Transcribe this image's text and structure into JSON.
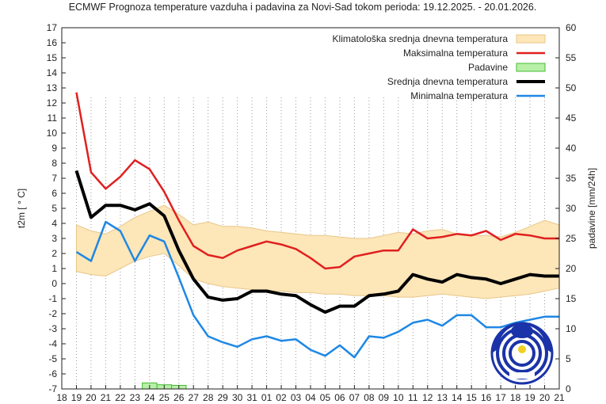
{
  "chart_data": {
    "type": "line",
    "title": "ECMWF Prognoza temperature vazduha i padavina za Novi-Sad tokom perioda: 19.12.2025. - 20.01.2026.",
    "ylabel": "t2m [ ° C]",
    "y2label": "padavine [mm/24h]",
    "ylim": [
      -7,
      17
    ],
    "y2lim": [
      0,
      60
    ],
    "yticks": [
      "17",
      "16",
      "15",
      "14",
      "13",
      "12",
      "11",
      "10",
      "9",
      "8",
      "7",
      "6",
      "5",
      "4",
      "3",
      "2",
      "1",
      "0",
      "-1",
      "-2",
      "-3",
      "-4",
      "-5",
      "-6",
      "-7"
    ],
    "y2ticks": [
      "60",
      "55",
      "50",
      "45",
      "40",
      "35",
      "30",
      "25",
      "20",
      "15",
      "10",
      "5",
      "0"
    ],
    "xticks": [
      "18",
      "19",
      "20",
      "21",
      "22",
      "23",
      "24",
      "25",
      "26",
      "27",
      "28",
      "29",
      "30",
      "31",
      "01",
      "02",
      "03",
      "04",
      "05",
      "06",
      "07",
      "08",
      "09",
      "10",
      "11",
      "12",
      "13",
      "14",
      "15",
      "16",
      "17",
      "18",
      "19",
      "20",
      "21"
    ],
    "grid": "vertical dotted",
    "legend_position": "top-right",
    "colors": {
      "climate_band": "#fde6b8",
      "climate_edge": "#e8c78a",
      "max": "#e02020",
      "precip": "#b8f0a8",
      "precip_edge": "#44bb33",
      "mean": "#000000",
      "min": "#1e88e5"
    },
    "series": [
      {
        "name": "Klimatološka srednja dnevna temperatura",
        "kind": "band",
        "x": [
          19,
          20,
          21,
          22,
          23,
          24,
          25,
          26,
          27,
          28,
          29,
          30,
          31,
          32,
          33,
          34,
          35,
          36,
          37,
          38,
          39,
          40,
          41,
          42,
          43,
          44,
          45,
          46,
          47,
          48,
          49,
          50,
          51,
          52
        ],
        "lower": [
          0.8,
          0.6,
          0.5,
          1.0,
          1.5,
          1.8,
          2.0,
          1.2,
          0.3,
          0.0,
          -0.2,
          -0.3,
          -0.4,
          -0.5,
          -0.5,
          -0.6,
          -0.6,
          -0.7,
          -0.7,
          -0.8,
          -0.8,
          -0.8,
          -0.9,
          -0.9,
          -0.8,
          -0.7,
          -0.8,
          -0.9,
          -1.0,
          -0.9,
          -0.8,
          -0.7,
          -0.5,
          -0.3
        ],
        "upper": [
          3.9,
          3.5,
          3.3,
          3.8,
          4.4,
          4.8,
          5.2,
          4.6,
          3.9,
          4.1,
          3.8,
          3.8,
          3.7,
          3.5,
          3.4,
          3.3,
          3.2,
          3.2,
          3.1,
          3.0,
          3.0,
          3.2,
          3.4,
          3.3,
          3.5,
          3.6,
          3.3,
          3.2,
          3.2,
          3.1,
          3.4,
          3.8,
          4.2,
          3.9
        ]
      },
      {
        "name": "Maksimalna temperatura",
        "kind": "line",
        "x": [
          19,
          20,
          21,
          22,
          23,
          24,
          25,
          26,
          27,
          28,
          29,
          30,
          31,
          32,
          33,
          34,
          35,
          36,
          37,
          38,
          39,
          40,
          41,
          42,
          43,
          44,
          45,
          46,
          47,
          48,
          49,
          50,
          51,
          52
        ],
        "values": [
          12.7,
          7.4,
          6.3,
          7.1,
          8.2,
          7.6,
          6.1,
          4.2,
          2.5,
          1.9,
          1.7,
          2.2,
          2.5,
          2.8,
          2.6,
          2.3,
          1.7,
          1.0,
          1.1,
          1.8,
          2.0,
          2.2,
          2.2,
          3.6,
          3.0,
          3.1,
          3.3,
          3.2,
          3.5,
          2.9,
          3.3,
          3.2,
          3.0,
          3.0
        ]
      },
      {
        "name": "Padavine",
        "kind": "bar",
        "axis": "y2",
        "x": [
          24,
          25,
          26
        ],
        "values": [
          1.0,
          0.7,
          0.6
        ]
      },
      {
        "name": "Srednja dnevna temperatura",
        "kind": "line",
        "x": [
          19,
          20,
          21,
          22,
          23,
          24,
          25,
          26,
          27,
          28,
          29,
          30,
          31,
          32,
          33,
          34,
          35,
          36,
          37,
          38,
          39,
          40,
          41,
          42,
          43,
          44,
          45,
          46,
          47,
          48,
          49,
          50,
          51,
          52
        ],
        "values": [
          7.5,
          4.4,
          5.2,
          5.2,
          4.9,
          5.3,
          4.5,
          2.2,
          0.3,
          -0.9,
          -1.1,
          -1.0,
          -0.5,
          -0.5,
          -0.7,
          -0.8,
          -1.4,
          -1.9,
          -1.5,
          -1.5,
          -0.8,
          -0.7,
          -0.5,
          0.6,
          0.3,
          0.1,
          0.6,
          0.4,
          0.3,
          0.0,
          0.3,
          0.6,
          0.5,
          0.5
        ]
      },
      {
        "name": "Minimalna temperatura",
        "kind": "line",
        "x": [
          19,
          20,
          21,
          22,
          23,
          24,
          25,
          26,
          27,
          28,
          29,
          30,
          31,
          32,
          33,
          34,
          35,
          36,
          37,
          38,
          39,
          40,
          41,
          42,
          43,
          44,
          45,
          46,
          47,
          48,
          49,
          50,
          51,
          52
        ],
        "values": [
          2.1,
          1.5,
          4.1,
          3.5,
          1.5,
          3.2,
          2.8,
          0.4,
          -2.1,
          -3.5,
          -3.9,
          -4.2,
          -3.7,
          -3.5,
          -3.8,
          -3.7,
          -4.4,
          -4.8,
          -4.1,
          -4.9,
          -3.5,
          -3.6,
          -3.2,
          -2.6,
          -2.4,
          -2.8,
          -2.1,
          -2.1,
          -2.9,
          -2.9,
          -2.6,
          -2.4,
          -2.2,
          -2.2
        ]
      }
    ]
  }
}
